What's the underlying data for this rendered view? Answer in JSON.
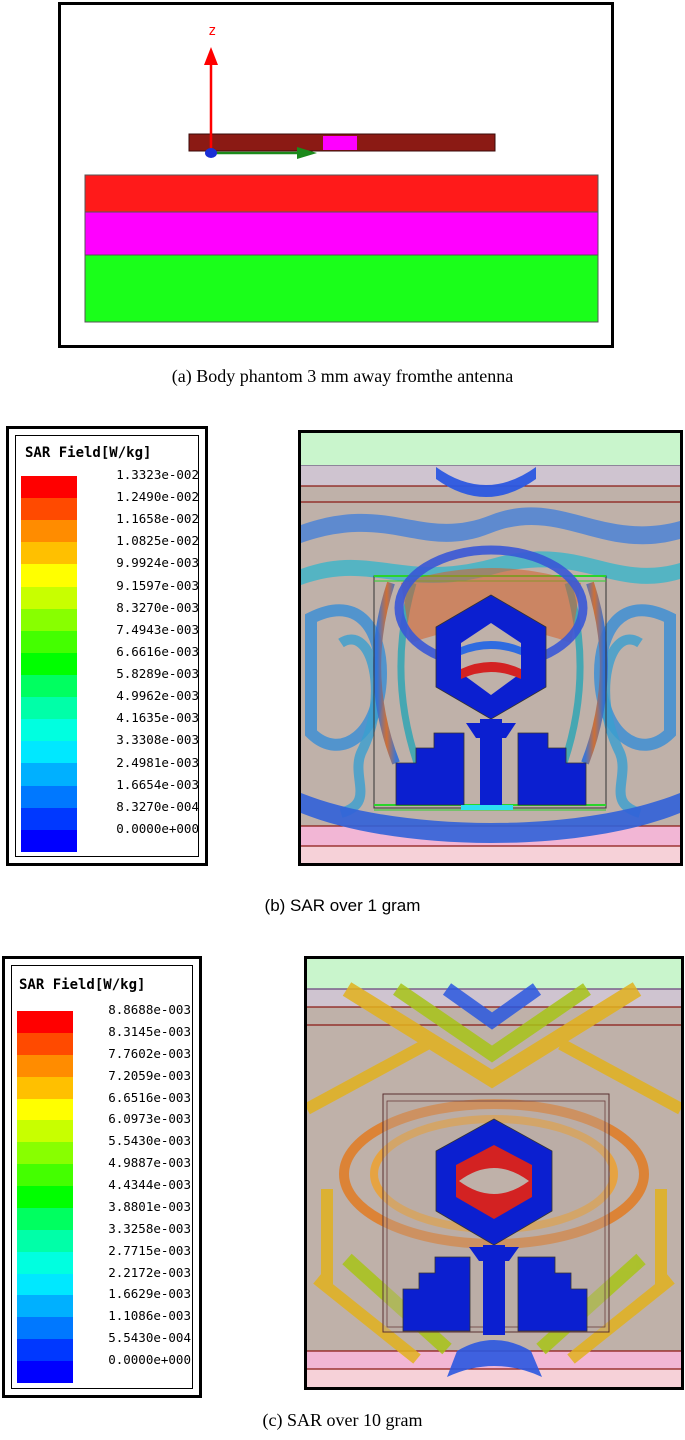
{
  "figure_a": {
    "axis_label": "z",
    "caption": "(a)  Body phantom 3 mm away fromthe antenna",
    "colors": {
      "substrate": "#8b1a14",
      "port": "#ff00ff",
      "layer_top": "#ff1a1a",
      "layer_mid": "#ff00ff",
      "layer_bottom": "#1aff1a",
      "axis_z": "#ff0000",
      "axis_y": "#1b8a1b",
      "axis_origin": "#1a2fd6"
    }
  },
  "figure_b": {
    "legend_title": "SAR Field[W/kg]",
    "legend_values": [
      "1.3323e-002",
      "1.2490e-002",
      "1.1658e-002",
      "1.0825e-002",
      "9.9924e-003",
      "9.1597e-003",
      "8.3270e-003",
      "7.4943e-003",
      "6.6616e-003",
      "5.8289e-003",
      "4.9962e-003",
      "4.1635e-003",
      "3.3308e-003",
      "2.4981e-003",
      "1.6654e-003",
      "8.3270e-004",
      "0.0000e+000"
    ],
    "caption": "(b)  SAR over 1 gram"
  },
  "figure_c": {
    "legend_title": "SAR Field[W/kg]",
    "legend_values": [
      "8.8688e-003",
      "8.3145e-003",
      "7.7602e-003",
      "7.2059e-003",
      "6.6516e-003",
      "6.0973e-003",
      "5.5430e-003",
      "4.9887e-003",
      "4.4344e-003",
      "3.8801e-003",
      "3.3258e-003",
      "2.7715e-003",
      "2.2172e-003",
      "1.6629e-003",
      "1.1086e-003",
      "5.5430e-004",
      "0.0000e+000"
    ],
    "caption": "(c)  SAR over 10 gram"
  },
  "colormap": [
    "#ff0000",
    "#ff4a00",
    "#ff8c00",
    "#ffc000",
    "#ffff00",
    "#c8ff00",
    "#88ff00",
    "#44ff00",
    "#00ff00",
    "#00ff60",
    "#00ffa8",
    "#00ffe0",
    "#00e8ff",
    "#00b0ff",
    "#0078ff",
    "#0038ff",
    "#0000ff"
  ]
}
